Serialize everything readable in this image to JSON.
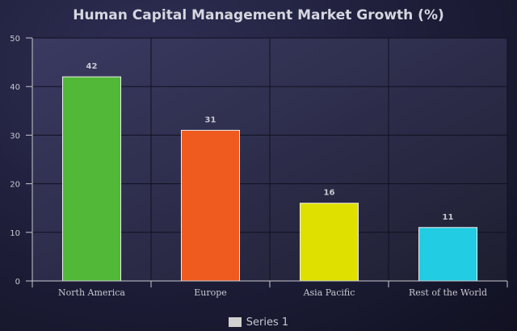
{
  "chart_data": {
    "type": "bar",
    "title": "Human Capital Management Market Growth (%)",
    "categories": [
      "North America",
      "Europe",
      "Asia Pacific",
      "Rest of the World"
    ],
    "series": [
      {
        "name": "Series 1",
        "values": [
          42,
          31,
          16,
          11
        ]
      }
    ],
    "bar_colors": [
      "#52b838",
      "#ef5a1e",
      "#dfe000",
      "#22cce2"
    ],
    "ylim": [
      0,
      50
    ],
    "yticks": [
      0,
      10,
      20,
      30,
      40,
      50
    ],
    "grid": true,
    "legend_position": "bottom",
    "data_labels": true
  },
  "legend": {
    "label": "Series 1",
    "swatch_color": "#d0d0d0"
  },
  "colors": {
    "plot_background": "#2a2a48",
    "grid": "#101020",
    "axis": "#c8c8d0",
    "label_text": "#c8c8d0"
  }
}
